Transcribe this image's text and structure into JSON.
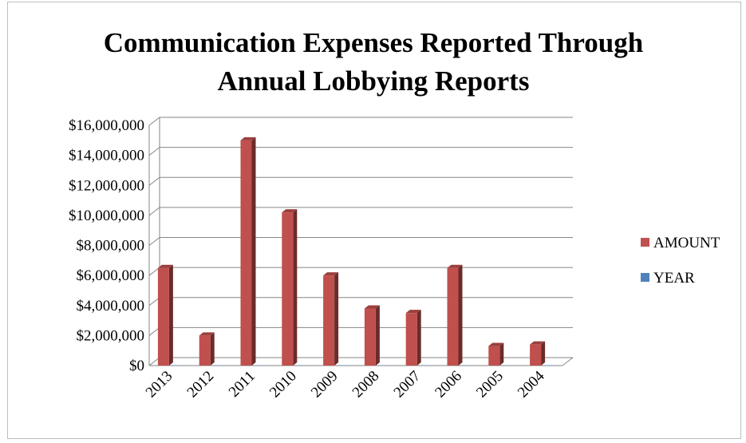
{
  "chart_data": {
    "type": "bar",
    "title_lines": [
      "Communication Expenses Reported Through",
      "Annual Lobbying Reports"
    ],
    "categories": [
      "2013",
      "2012",
      "2011",
      "2010",
      "2009",
      "2008",
      "2007",
      "2006",
      "2005",
      "2004"
    ],
    "series": [
      {
        "name": "AMOUNT",
        "color": "#c0504d",
        "values": [
          6500000,
          2000000,
          15000000,
          10200000,
          6000000,
          3800000,
          3500000,
          6500000,
          1300000,
          1400000
        ]
      },
      {
        "name": "YEAR",
        "color": "#4f81bd",
        "values": [
          2013,
          2012,
          2011,
          2010,
          2009,
          2008,
          2007,
          2006,
          2005,
          2004
        ]
      }
    ],
    "y_ticks": [
      "$0",
      "$2,000,000",
      "$4,000,000",
      "$6,000,000",
      "$8,000,000",
      "$10,000,000",
      "$12,000,000",
      "$14,000,000",
      "$16,000,000"
    ],
    "ylim": [
      0,
      16000000
    ],
    "grid": true,
    "legend_position": "right",
    "style": "3d-column"
  }
}
